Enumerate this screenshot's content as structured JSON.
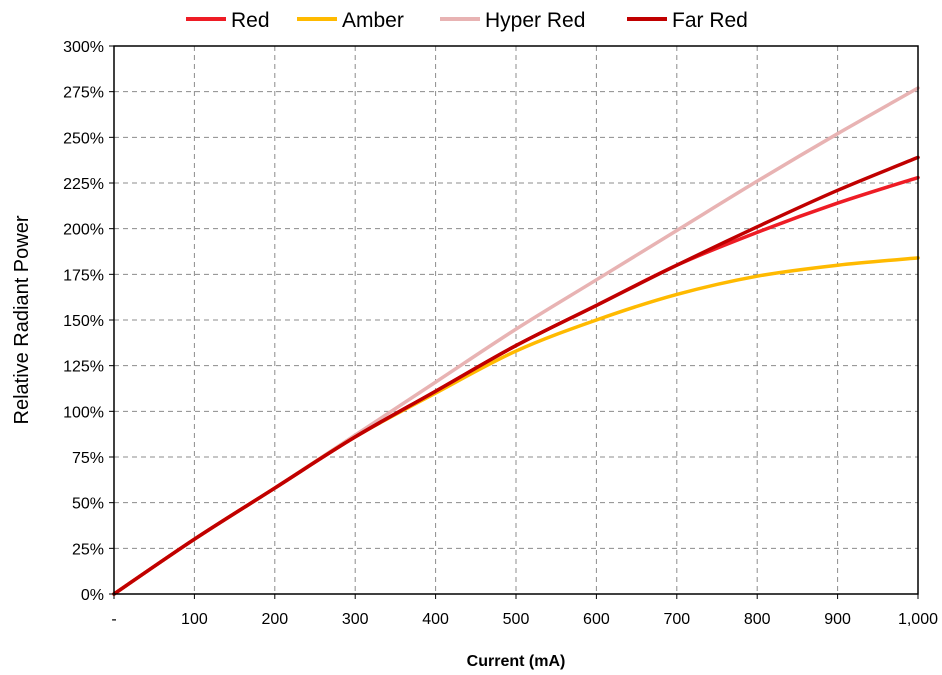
{
  "chart_data": {
    "type": "line",
    "title": "",
    "xlabel": "Current (mA)",
    "ylabel": "Relative Radiant Power",
    "xlim": [
      0,
      1000
    ],
    "ylim": [
      0,
      300
    ],
    "x_ticks": [
      0,
      100,
      200,
      300,
      400,
      500,
      600,
      700,
      800,
      900,
      1000
    ],
    "x_tick_labels": [
      "-",
      "100",
      "200",
      "300",
      "400",
      "500",
      "600",
      "700",
      "800",
      "900",
      "1,000"
    ],
    "y_ticks": [
      0,
      25,
      50,
      75,
      100,
      125,
      150,
      175,
      200,
      225,
      250,
      275,
      300
    ],
    "y_tick_labels": [
      "0%",
      "25%",
      "50%",
      "75%",
      "100%",
      "125%",
      "150%",
      "175%",
      "200%",
      "225%",
      "250%",
      "275%",
      "300%"
    ],
    "grid": true,
    "legend_position": "top",
    "x": [
      0,
      100,
      200,
      300,
      400,
      500,
      600,
      700,
      800,
      900,
      1000
    ],
    "series": [
      {
        "name": "Red",
        "color": "#ee1c25",
        "values": [
          0,
          30,
          58,
          86,
          111,
          136,
          158,
          180,
          198,
          214,
          228
        ]
      },
      {
        "name": "Amber",
        "color": "#ffba00",
        "values": [
          0,
          30,
          58,
          86,
          110,
          133,
          150,
          164,
          174,
          180,
          184
        ]
      },
      {
        "name": "Hyper Red",
        "color": "#e8b3b3",
        "values": [
          0,
          30,
          58,
          87,
          116,
          145,
          172,
          199,
          226,
          252,
          277
        ]
      },
      {
        "name": "Far Red",
        "color": "#c00000",
        "values": [
          0,
          30,
          58,
          86,
          111,
          136,
          158,
          180,
          201,
          221,
          239
        ]
      }
    ]
  }
}
